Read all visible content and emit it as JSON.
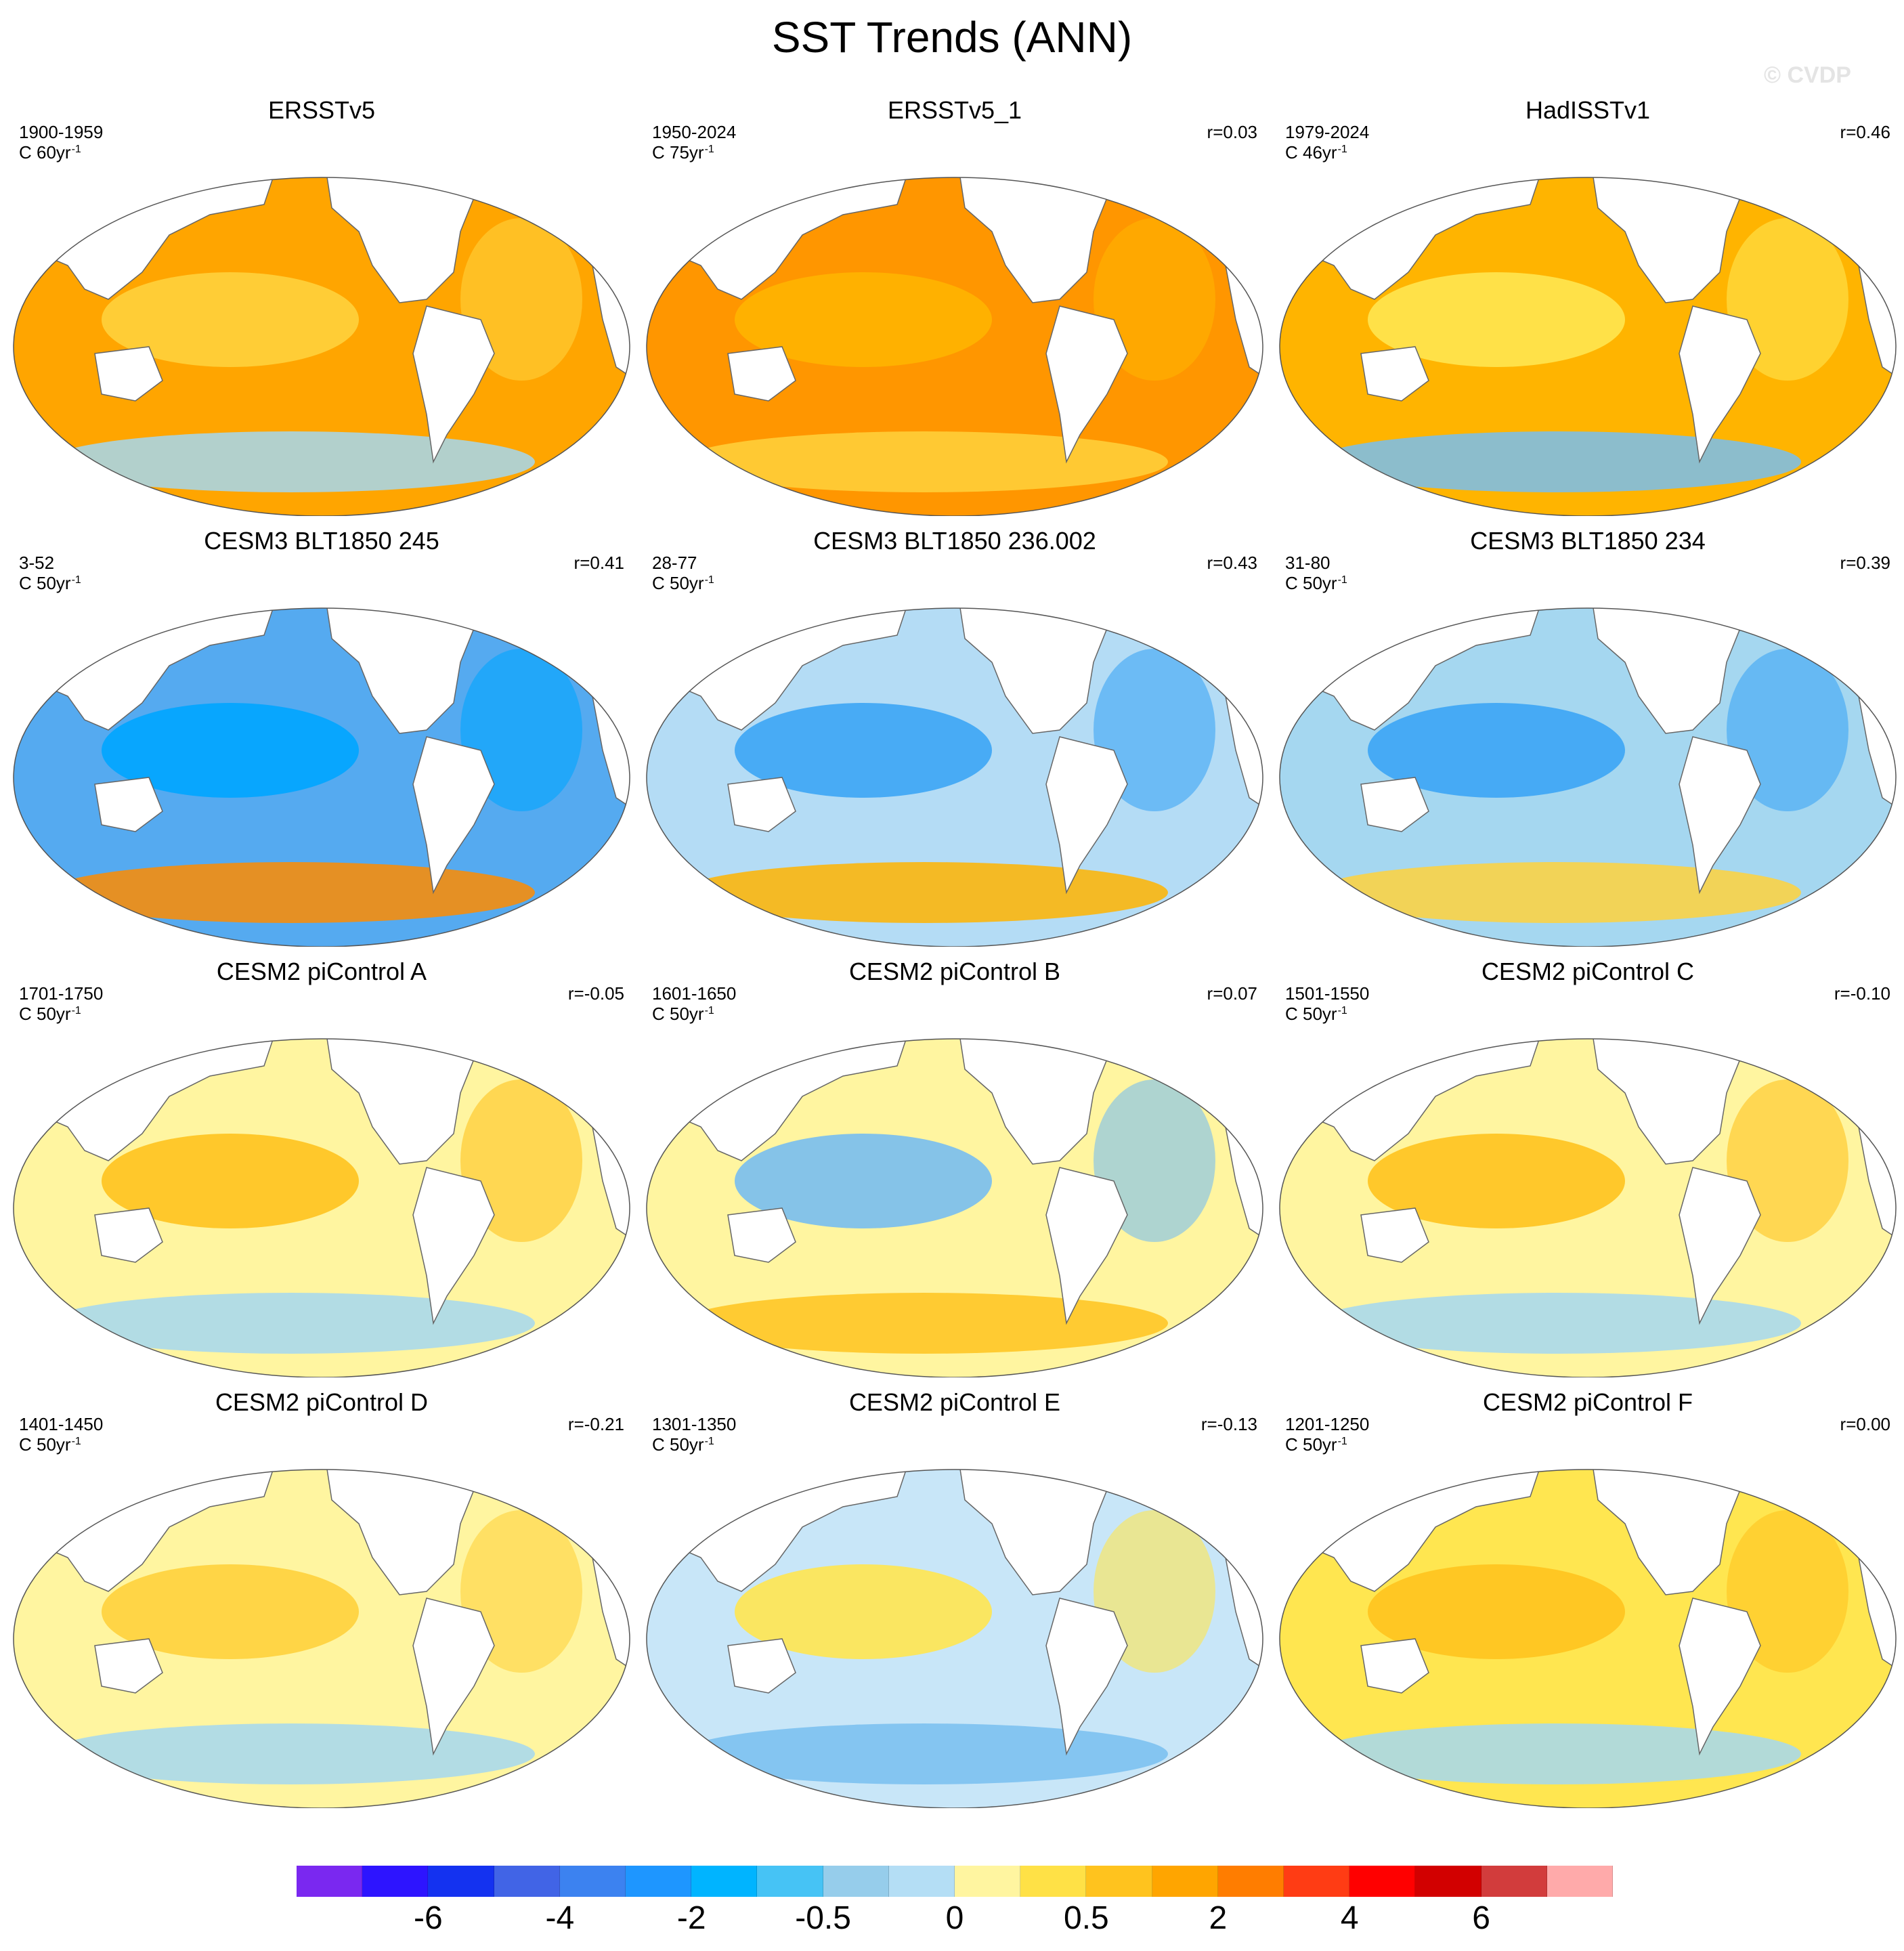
{
  "title": "SST Trends (ANN)",
  "watermark": "© CVDP",
  "panels": [
    {
      "title": "ERSSTv5",
      "years": "1900-1959",
      "units": "C 60yr",
      "units_exp": "-1",
      "r": "",
      "fill": "#ffa500",
      "blob1": "#ffd23c",
      "blob2": "#a5d7f0"
    },
    {
      "title": "ERSSTv5_1",
      "years": "1950-2024",
      "units": "C 75yr",
      "units_exp": "-1",
      "r": "r=0.03",
      "fill": "#ff9600",
      "blob1": "#ffb400",
      "blob2": "#ffd23c"
    },
    {
      "title": "HadISSTv1",
      "years": "1979-2024",
      "units": "C 46yr",
      "units_exp": "-1",
      "r": "r=0.46",
      "fill": "#ffb400",
      "blob1": "#ffe650",
      "blob2": "#78bef0"
    },
    {
      "title": "CESM3 BLT1850 245",
      "years": "3-52",
      "units": "C 50yr",
      "units_exp": "-1",
      "r": "r=0.41",
      "fill": "#55aaf0",
      "blob1": "#00a5ff",
      "blob2": "#ff8c00"
    },
    {
      "title": "CESM3 BLT1850 236.002",
      "years": "28-77",
      "units": "C 50yr",
      "units_exp": "-1",
      "r": "r=0.43",
      "fill": "#b4dcf5",
      "blob1": "#3ca5f5",
      "blob2": "#ffb400"
    },
    {
      "title": "CESM3 BLT1850 234",
      "years": "31-80",
      "units": "C 50yr",
      "units_exp": "-1",
      "r": "r=0.39",
      "fill": "#a5d7f0",
      "blob1": "#3ca5f5",
      "blob2": "#ffd23c"
    },
    {
      "title": "CESM2 piControl A",
      "years": "1701-1750",
      "units": "C 50yr",
      "units_exp": "-1",
      "r": "r=-0.05",
      "fill": "#fff5a0",
      "blob1": "#ffc31e",
      "blob2": "#a5d7f0"
    },
    {
      "title": "CESM2 piControl B",
      "years": "1601-1650",
      "units": "C 50yr",
      "units_exp": "-1",
      "r": "r=0.07",
      "fill": "#fff5a0",
      "blob1": "#78bef0",
      "blob2": "#ffc31e"
    },
    {
      "title": "CESM2 piControl C",
      "years": "1501-1550",
      "units": "C 50yr",
      "units_exp": "-1",
      "r": "r=-0.10",
      "fill": "#fff5a0",
      "blob1": "#ffc31e",
      "blob2": "#a5d7f0"
    },
    {
      "title": "CESM2 piControl D",
      "years": "1401-1450",
      "units": "C 50yr",
      "units_exp": "-1",
      "r": "r=-0.21",
      "fill": "#fff5a0",
      "blob1": "#ffd23c",
      "blob2": "#a5d7f0"
    },
    {
      "title": "CESM2 piControl E",
      "years": "1301-1350",
      "units": "C 50yr",
      "units_exp": "-1",
      "r": "r=-0.13",
      "fill": "#c8e6f8",
      "blob1": "#ffe650",
      "blob2": "#78bef0"
    },
    {
      "title": "CESM2 piControl F",
      "years": "1201-1250",
      "units": "C 50yr",
      "units_exp": "-1",
      "r": "r=0.00",
      "fill": "#ffe650",
      "blob1": "#ffc31e",
      "blob2": "#a5d7f0"
    }
  ],
  "colorbar": {
    "colors": [
      "#7a28f0",
      "#2d14ff",
      "#1432f0",
      "#4164e6",
      "#3c82f0",
      "#1e96ff",
      "#00b4ff",
      "#46c3f5",
      "#96cdeb",
      "#b4def5",
      "#fff5a0",
      "#ffe146",
      "#ffc31e",
      "#ffa500",
      "#ff7d00",
      "#ff3c14",
      "#ff0000",
      "#d20000",
      "#d23c3c",
      "#ffaaaa"
    ],
    "labels": [
      "-6",
      "-4",
      "-2",
      "-0.5",
      "0",
      "0.5",
      "2",
      "4",
      "6"
    ]
  }
}
